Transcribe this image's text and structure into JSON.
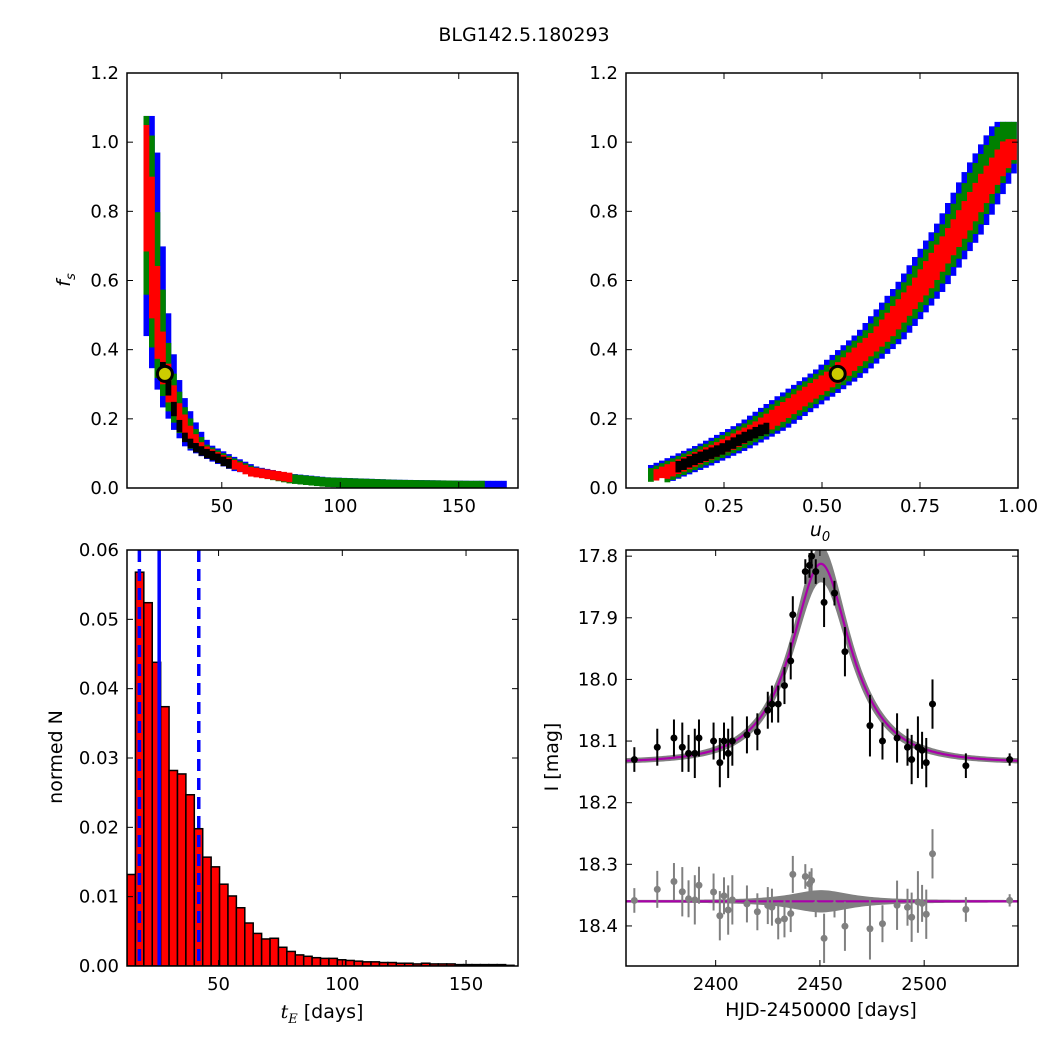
{
  "title": "BLG142.5.180293",
  "chart_data": [
    {
      "id": "fs_vs_tE",
      "type": "heatmap",
      "xlabel": "",
      "ylabel": "f_s",
      "xlim": [
        10,
        175
      ],
      "ylim": [
        0.0,
        1.2
      ],
      "xticks": [
        50,
        100,
        150
      ],
      "yticks": [
        0.0,
        0.2,
        0.4,
        0.6,
        0.8,
        1.0,
        1.2
      ],
      "levels": [
        {
          "name": "outer",
          "color": "#0000ff",
          "ridge": [
            [
              16,
              1.07
            ],
            [
              18,
              0.95
            ],
            [
              20,
              0.7
            ],
            [
              23,
              0.45
            ],
            [
              26,
              0.33
            ],
            [
              30,
              0.24
            ],
            [
              35,
              0.17
            ],
            [
              40,
              0.12
            ],
            [
              50,
              0.085
            ],
            [
              60,
              0.055
            ],
            [
              75,
              0.035
            ],
            [
              90,
              0.025
            ],
            [
              120,
              0.018
            ],
            [
              150,
              0.015
            ],
            [
              170,
              0.015
            ]
          ],
          "halfwidth": 5
        },
        {
          "name": "middle",
          "color": "#008000",
          "ridge": [
            [
              16,
              1.07
            ],
            [
              18,
              0.95
            ],
            [
              20,
              0.7
            ],
            [
              23,
              0.45
            ],
            [
              26,
              0.33
            ],
            [
              30,
              0.24
            ],
            [
              35,
              0.17
            ],
            [
              40,
              0.12
            ],
            [
              50,
              0.085
            ],
            [
              60,
              0.055
            ],
            [
              75,
              0.035
            ],
            [
              90,
              0.025
            ],
            [
              120,
              0.018
            ],
            [
              150,
              0.015
            ],
            [
              160,
              0.015
            ]
          ],
          "halfwidth": 3.5
        },
        {
          "name": "inner",
          "color": "#ff0000",
          "ridge": [
            [
              16,
              1.05
            ],
            [
              18,
              0.95
            ],
            [
              20,
              0.7
            ],
            [
              23,
              0.45
            ],
            [
              26,
              0.33
            ],
            [
              30,
              0.24
            ],
            [
              35,
              0.17
            ],
            [
              40,
              0.12
            ],
            [
              50,
              0.085
            ],
            [
              60,
              0.055
            ],
            [
              70,
              0.045
            ],
            [
              80,
              0.035
            ]
          ],
          "halfwidth": 2
        },
        {
          "name": "core",
          "color": "#000000",
          "ridge": [
            [
              24,
              0.37
            ],
            [
              27,
              0.3
            ],
            [
              30,
              0.22
            ],
            [
              33,
              0.16
            ],
            [
              37,
              0.13
            ],
            [
              42,
              0.11
            ],
            [
              46,
              0.1
            ],
            [
              50,
              0.085
            ],
            [
              55,
              0.07
            ]
          ],
          "halfwidth": 0.6
        }
      ],
      "best_fit": {
        "x": 26,
        "y": 0.33
      }
    },
    {
      "id": "fs_vs_u0",
      "type": "heatmap",
      "xlabel": "u_0",
      "ylabel": "",
      "xlim": [
        0.0,
        1.0
      ],
      "ylim": [
        0.0,
        1.2
      ],
      "xticks": [
        0.25,
        0.5,
        0.75,
        1.0
      ],
      "xticklabels": [
        "0.25",
        "0.50",
        "0.75",
        "1.00"
      ],
      "yticks": [
        0.0,
        0.2,
        0.4,
        0.6,
        0.8,
        1.0,
        1.2
      ],
      "levels": [
        {
          "name": "outer",
          "color": "#0000ff",
          "ridge": [
            [
              0.05,
              0.025
            ],
            [
              0.15,
              0.07
            ],
            [
              0.25,
              0.12
            ],
            [
              0.35,
              0.18
            ],
            [
              0.45,
              0.26
            ],
            [
              0.54,
              0.33
            ],
            [
              0.65,
              0.44
            ],
            [
              0.75,
              0.58
            ],
            [
              0.85,
              0.75
            ],
            [
              0.93,
              0.92
            ],
            [
              1.0,
              1.05
            ]
          ],
          "halfwidth": 0.06
        },
        {
          "name": "middle",
          "color": "#008000",
          "ridge": [
            [
              0.06,
              0.025
            ],
            [
              0.15,
              0.07
            ],
            [
              0.25,
              0.12
            ],
            [
              0.35,
              0.18
            ],
            [
              0.45,
              0.26
            ],
            [
              0.54,
              0.33
            ],
            [
              0.65,
              0.44
            ],
            [
              0.75,
              0.58
            ],
            [
              0.85,
              0.75
            ],
            [
              0.93,
              0.92
            ],
            [
              1.0,
              1.05
            ]
          ],
          "halfwidth": 0.045
        },
        {
          "name": "inner",
          "color": "#ff0000",
          "ridge": [
            [
              0.07,
              0.03
            ],
            [
              0.15,
              0.07
            ],
            [
              0.25,
              0.12
            ],
            [
              0.35,
              0.18
            ],
            [
              0.45,
              0.26
            ],
            [
              0.54,
              0.33
            ],
            [
              0.65,
              0.44
            ],
            [
              0.75,
              0.58
            ],
            [
              0.85,
              0.75
            ],
            [
              0.93,
              0.9
            ],
            [
              0.99,
              1.0
            ]
          ],
          "halfwidth": 0.025
        },
        {
          "name": "core",
          "color": "#000000",
          "ridge": [
            [
              0.12,
              0.06
            ],
            [
              0.18,
              0.09
            ],
            [
              0.25,
              0.12
            ],
            [
              0.3,
              0.15
            ],
            [
              0.36,
              0.18
            ]
          ],
          "halfwidth": 0.006
        }
      ],
      "best_fit": {
        "x": 0.54,
        "y": 0.33
      }
    },
    {
      "id": "tE_histogram",
      "type": "bar",
      "xlabel": "t_E [days]",
      "ylabel": "normed N",
      "xlim": [
        13,
        171
      ],
      "ylim": [
        0.0,
        0.06
      ],
      "xticks": [
        50,
        100,
        150
      ],
      "yticks": [
        0.0,
        0.01,
        0.02,
        0.03,
        0.04,
        0.05,
        0.06
      ],
      "yticklabels": [
        "0.00",
        "0.01",
        "0.02",
        "0.03",
        "0.04",
        "0.05",
        "0.06"
      ],
      "bin_start": 13,
      "bin_width": 3.4,
      "values": [
        0.0132,
        0.0568,
        0.0524,
        0.0438,
        0.0374,
        0.0282,
        0.0277,
        0.0247,
        0.0198,
        0.0157,
        0.0143,
        0.0118,
        0.0101,
        0.0084,
        0.0062,
        0.0047,
        0.0039,
        0.004,
        0.0027,
        0.0021,
        0.0016,
        0.0014,
        0.0012,
        0.0011,
        0.0011,
        0.0009,
        0.0008,
        0.0007,
        0.0006,
        0.0006,
        0.0005,
        0.0005,
        0.0004,
        0.0004,
        0.0003,
        0.0004,
        0.0003,
        0.0003,
        0.0003,
        0.0002,
        0.0002,
        0.0002,
        0.0002,
        0.0002,
        0.0002,
        0.0001
      ],
      "bar_color": "#ff0000",
      "vlines": [
        {
          "x": 18,
          "style": "dashed",
          "color": "#0000ff"
        },
        {
          "x": 26,
          "style": "solid",
          "color": "#0000ff"
        },
        {
          "x": 42,
          "style": "dashed",
          "color": "#0000ff"
        }
      ]
    },
    {
      "id": "light_curve",
      "type": "scatter",
      "xlabel": "HJD-2450000 [days]",
      "ylabel": "I [mag]",
      "xlim": [
        2357,
        2545
      ],
      "ylim": [
        18.465,
        17.79
      ],
      "xticks": [
        2400,
        2450,
        2500
      ],
      "yticks": [
        17.8,
        17.9,
        18.0,
        18.1,
        18.2,
        18.3,
        18.4
      ],
      "model": {
        "t0": 2450.5,
        "tE": 26,
        "u0": 0.54,
        "fs": 0.33,
        "base_mag": 18.135,
        "color": "#aa00aa",
        "band_color": "#808080"
      },
      "residual_offset": 18.36,
      "points": [
        {
          "x": 2361,
          "y": 18.13,
          "err": 0.02
        },
        {
          "x": 2372,
          "y": 18.11,
          "err": 0.03
        },
        {
          "x": 2380,
          "y": 18.095,
          "err": 0.03
        },
        {
          "x": 2384,
          "y": 18.11,
          "err": 0.04
        },
        {
          "x": 2387,
          "y": 18.12,
          "err": 0.03
        },
        {
          "x": 2390,
          "y": 18.12,
          "err": 0.04
        },
        {
          "x": 2392,
          "y": 18.095,
          "err": 0.03
        },
        {
          "x": 2399,
          "y": 18.1,
          "err": 0.03
        },
        {
          "x": 2402,
          "y": 18.135,
          "err": 0.04
        },
        {
          "x": 2404,
          "y": 18.1,
          "err": 0.03
        },
        {
          "x": 2406,
          "y": 18.12,
          "err": 0.04
        },
        {
          "x": 2408,
          "y": 18.1,
          "err": 0.04
        },
        {
          "x": 2415,
          "y": 18.09,
          "err": 0.03
        },
        {
          "x": 2420,
          "y": 18.085,
          "err": 0.03
        },
        {
          "x": 2425,
          "y": 18.05,
          "err": 0.03
        },
        {
          "x": 2427,
          "y": 18.04,
          "err": 0.03
        },
        {
          "x": 2430,
          "y": 18.04,
          "err": 0.03
        },
        {
          "x": 2433,
          "y": 18.01,
          "err": 0.03
        },
        {
          "x": 2436,
          "y": 17.97,
          "err": 0.03
        },
        {
          "x": 2437,
          "y": 17.895,
          "err": 0.03
        },
        {
          "x": 2443,
          "y": 17.825,
          "err": 0.02
        },
        {
          "x": 2445,
          "y": 17.815,
          "err": 0.02
        },
        {
          "x": 2446,
          "y": 17.8,
          "err": 0.02
        },
        {
          "x": 2448,
          "y": 17.825,
          "err": 0.02
        },
        {
          "x": 2452,
          "y": 17.875,
          "err": 0.04
        },
        {
          "x": 2457,
          "y": 17.86,
          "err": 0.02
        },
        {
          "x": 2462,
          "y": 17.955,
          "err": 0.04
        },
        {
          "x": 2474,
          "y": 18.075,
          "err": 0.05
        },
        {
          "x": 2480,
          "y": 18.1,
          "err": 0.03
        },
        {
          "x": 2487,
          "y": 18.095,
          "err": 0.04
        },
        {
          "x": 2492,
          "y": 18.11,
          "err": 0.03
        },
        {
          "x": 2494,
          "y": 18.13,
          "err": 0.04
        },
        {
          "x": 2497,
          "y": 18.11,
          "err": 0.05
        },
        {
          "x": 2499,
          "y": 18.115,
          "err": 0.03
        },
        {
          "x": 2501,
          "y": 18.135,
          "err": 0.04
        },
        {
          "x": 2504,
          "y": 18.04,
          "err": 0.04
        },
        {
          "x": 2520,
          "y": 18.14,
          "err": 0.02
        },
        {
          "x": 2541,
          "y": 18.13,
          "err": 0.01
        }
      ]
    }
  ]
}
